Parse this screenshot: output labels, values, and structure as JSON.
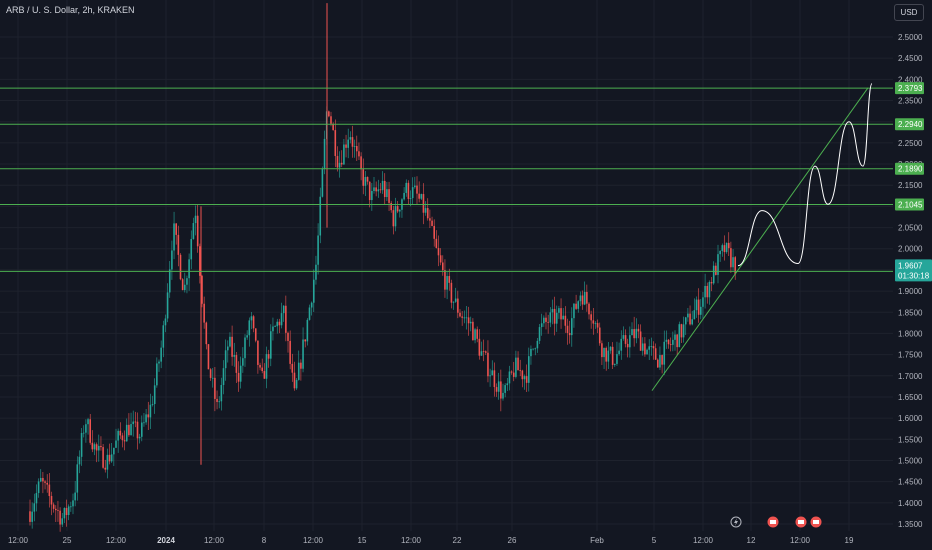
{
  "header": {
    "title": "ARB / U. S. Dollar, 2h, KRAKEN",
    "currency_button": "USD"
  },
  "colors": {
    "background": "#131722",
    "grid": "#1e222d",
    "up": "#26a69a",
    "down": "#ef5350",
    "level_line": "#4caf50",
    "level_label_bg": "#4caf50",
    "current_bg": "#26a69a",
    "projection": "#ffffff"
  },
  "chart_data": {
    "type": "candlestick",
    "symbol": "ARB / U. S. Dollar",
    "interval": "2h",
    "exchange": "KRAKEN",
    "ylim": [
      1.33,
      2.56
    ],
    "y_ticks": [
      "2.5000",
      "2.4500",
      "2.4000",
      "2.3500",
      "2.3000",
      "2.2500",
      "2.2000",
      "2.1500",
      "2.1000",
      "2.0500",
      "2.0000",
      "1.9500",
      "1.9000",
      "1.8500",
      "1.8000",
      "1.7500",
      "1.7000",
      "1.6500",
      "1.6000",
      "1.5500",
      "1.5000",
      "1.4500",
      "1.4000",
      "1.3500"
    ],
    "x_ticks": [
      {
        "label": "12:00",
        "bold": false
      },
      {
        "label": "25",
        "bold": false
      },
      {
        "label": "12:00",
        "bold": false
      },
      {
        "label": "2024",
        "bold": true
      },
      {
        "label": "12:00",
        "bold": false
      },
      {
        "label": "8",
        "bold": false
      },
      {
        "label": "12:00",
        "bold": false
      },
      {
        "label": "15",
        "bold": false
      },
      {
        "label": "12:00",
        "bold": false
      },
      {
        "label": "22",
        "bold": false
      },
      {
        "label": "26",
        "bold": false
      },
      {
        "label": "Feb",
        "bold": false
      },
      {
        "label": "5",
        "bold": false
      },
      {
        "label": "12:00",
        "bold": false
      },
      {
        "label": "12",
        "bold": false
      },
      {
        "label": "12:00",
        "bold": false
      },
      {
        "label": "19",
        "bold": false
      }
    ],
    "price_path": [
      1.38,
      1.45,
      1.4,
      1.36,
      1.42,
      1.6,
      1.52,
      1.5,
      1.55,
      1.58,
      1.56,
      1.63,
      1.78,
      2.05,
      1.9,
      2.1,
      1.75,
      1.62,
      1.78,
      1.7,
      1.84,
      1.68,
      1.8,
      1.85,
      1.65,
      1.8,
      1.97,
      2.35,
      2.2,
      2.28,
      2.18,
      2.12,
      2.15,
      2.07,
      2.14,
      2.13,
      2.08,
      1.98,
      1.9,
      1.85,
      1.82,
      1.75,
      1.7,
      1.65,
      1.72,
      1.7,
      1.8,
      1.83,
      1.84,
      1.82,
      1.9,
      1.85,
      1.76,
      1.74,
      1.78,
      1.8,
      1.76,
      1.74,
      1.77,
      1.8,
      1.84,
      1.88,
      1.94,
      2.0,
      1.96
    ],
    "levels": [
      {
        "label": "2.3793",
        "value": 2.3793
      },
      {
        "label": "2.2940",
        "value": 2.294
      },
      {
        "label": "2.1890",
        "value": 2.189
      },
      {
        "label": "2.1045",
        "value": 2.1045
      },
      {
        "label": "1.9465",
        "value": 1.9465
      }
    ],
    "current_price": {
      "value": 1.9607,
      "label": "1.9607",
      "countdown": "01:30:18"
    },
    "trendline": {
      "from_price": 1.665,
      "to_price": 2.38
    },
    "projection_prices": [
      1.96,
      2.09,
      1.965,
      2.195,
      2.105,
      2.3,
      2.195,
      2.39
    ],
    "event_icons": 4
  }
}
